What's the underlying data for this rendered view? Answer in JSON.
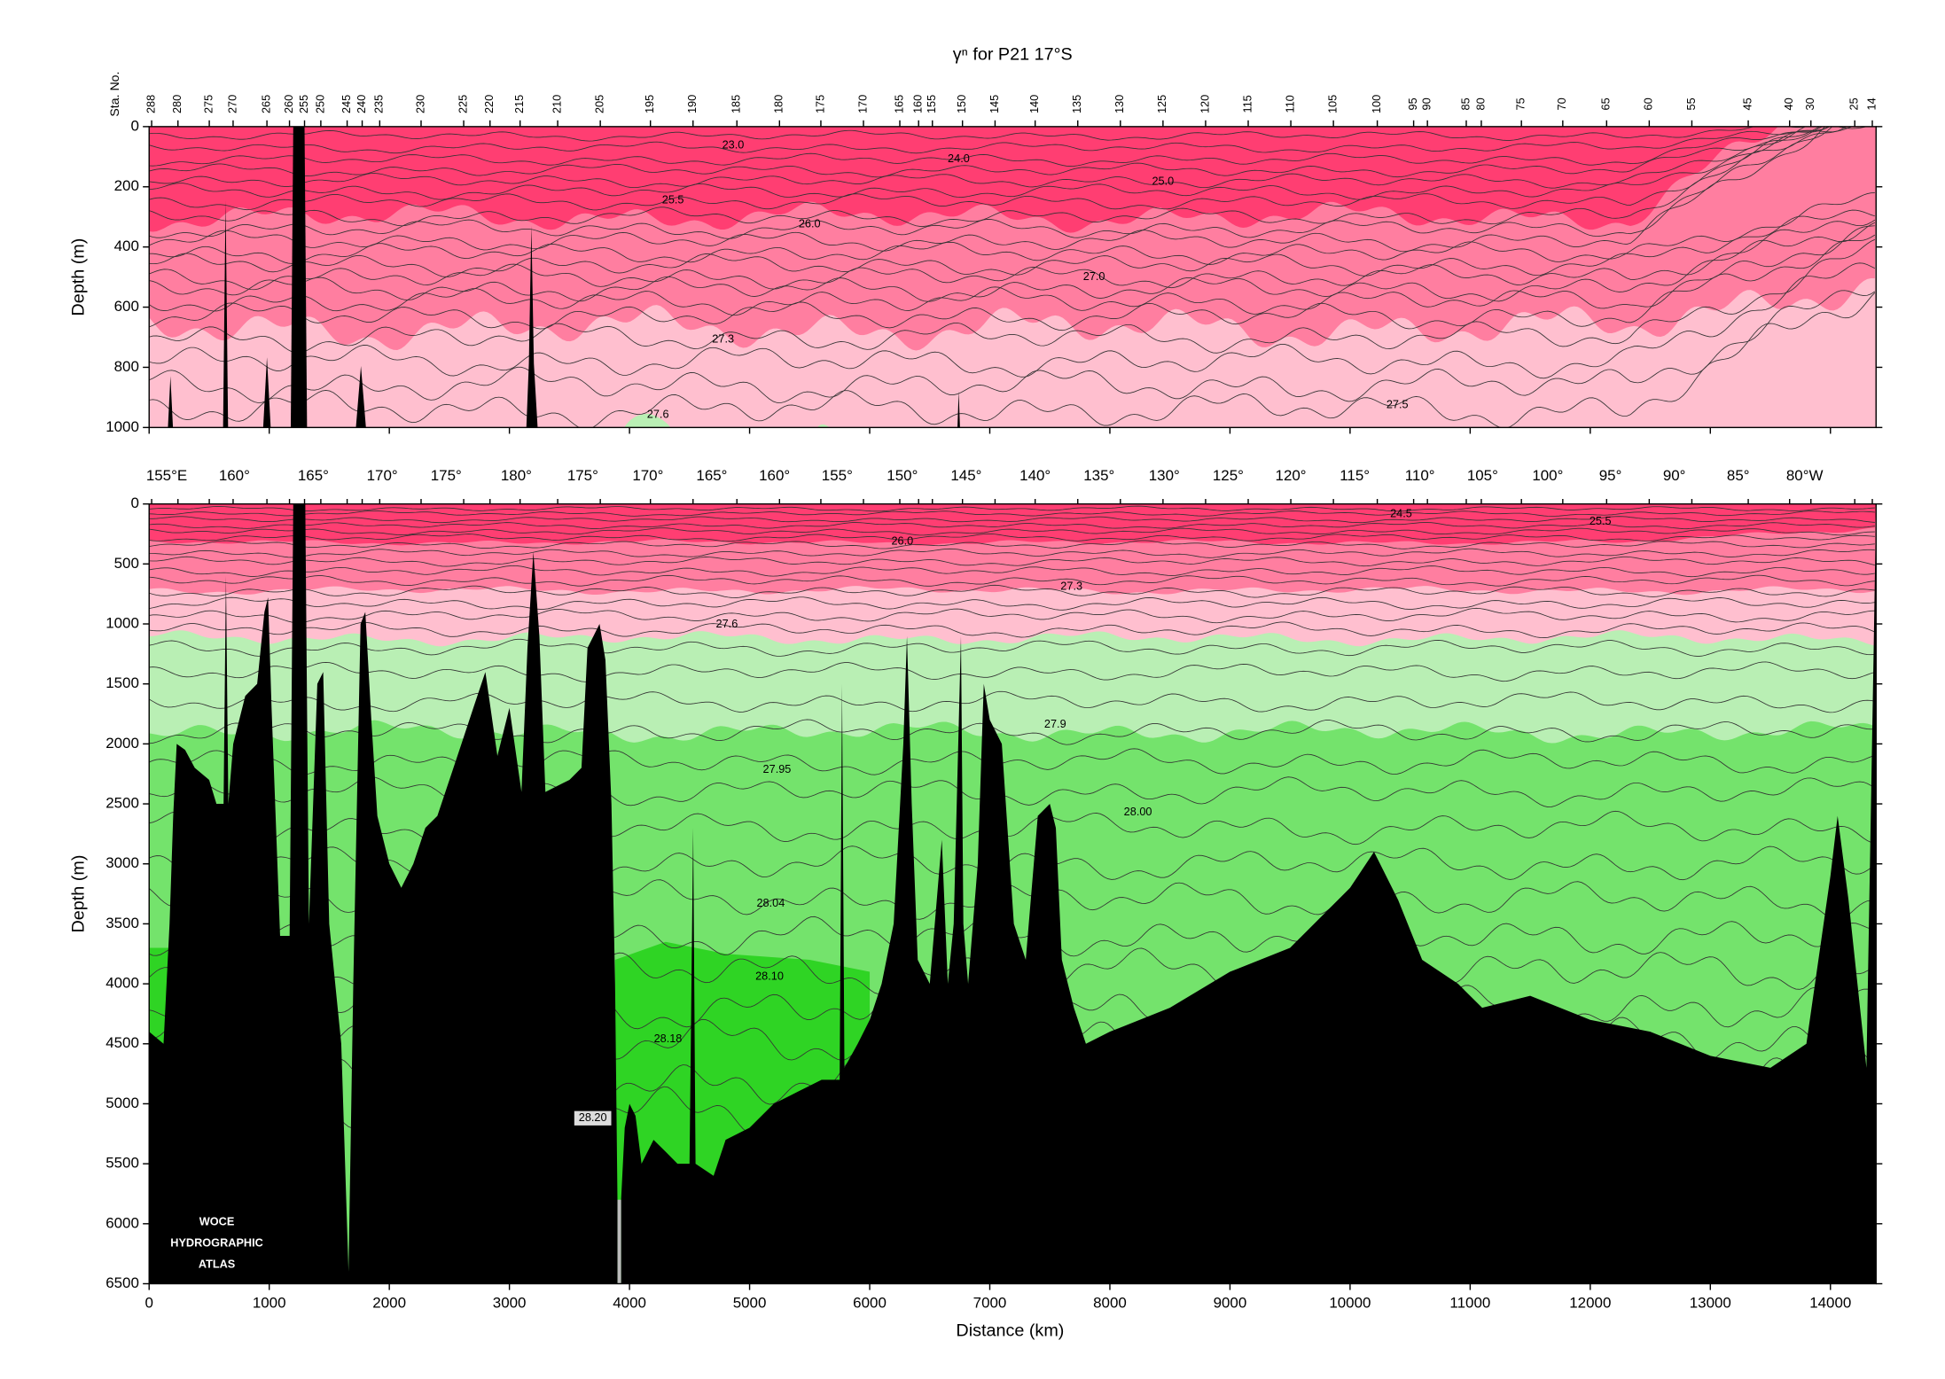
{
  "chart_data": [
    {
      "type": "contour-section",
      "title": "γⁿ for P21 17°S",
      "station_label": "Sta. No.",
      "stations": [
        288,
        280,
        275,
        270,
        265,
        260,
        255,
        250,
        245,
        240,
        235,
        230,
        225,
        220,
        215,
        210,
        205,
        195,
        190,
        185,
        180,
        175,
        170,
        165,
        160,
        155,
        150,
        145,
        140,
        135,
        130,
        125,
        120,
        115,
        110,
        105,
        100,
        95,
        90,
        85,
        80,
        75,
        70,
        65,
        60,
        55,
        45,
        40,
        30,
        25,
        14
      ],
      "ylabel": "Depth (m)",
      "ylim": [
        0,
        1000
      ],
      "yticks": [
        0,
        200,
        400,
        600,
        800,
        1000
      ],
      "contour_labels": [
        "23.0",
        "24.0",
        "25.0",
        "25.5",
        "26.0",
        "27.0",
        "27.3",
        "27.6",
        "27.5"
      ]
    },
    {
      "type": "contour-section",
      "longitudes": [
        "155°E",
        "160°",
        "165°",
        "170°",
        "175°",
        "180°",
        "175°",
        "170°",
        "165°",
        "160°",
        "155°",
        "150°",
        "145°",
        "140°",
        "135°",
        "130°",
        "125°",
        "120°",
        "115°",
        "110°",
        "105°",
        "100°",
        "95°",
        "90°",
        "85°",
        "80°W"
      ],
      "ylabel": "Depth (m)",
      "ylim": [
        0,
        6500
      ],
      "yticks": [
        0,
        500,
        1000,
        1500,
        2000,
        2500,
        3000,
        3500,
        4000,
        4500,
        5000,
        5500,
        6000,
        6500
      ],
      "xlabel": "Distance (km)",
      "xlim": [
        0,
        14380
      ],
      "xticks": [
        0,
        1000,
        2000,
        3000,
        4000,
        5000,
        6000,
        7000,
        8000,
        9000,
        10000,
        11000,
        12000,
        13000,
        14000
      ],
      "contour_labels": [
        "24.5",
        "25.5",
        "26.0",
        "27.3",
        "27.6",
        "27.9",
        "27.95",
        "28.00",
        "28.04",
        "28.10",
        "28.18",
        "28.20"
      ],
      "annotation": [
        "WOCE",
        "HYDROGRAPHIC",
        "ATLAS"
      ]
    }
  ]
}
